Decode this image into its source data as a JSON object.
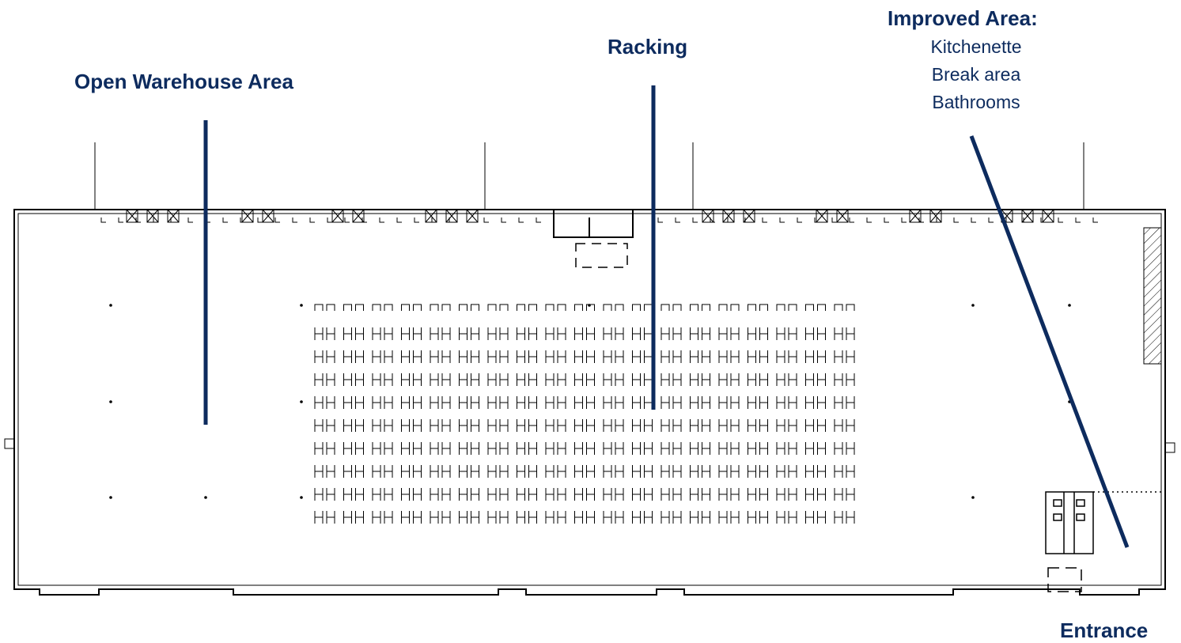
{
  "labels": {
    "open_warehouse": "Open Warehouse Area",
    "racking": "Racking",
    "improved_area_title": "Improved Area:",
    "improved_area_items": [
      "Kitchenette",
      "Break area",
      "Bathrooms"
    ],
    "entrance": "Entrance"
  },
  "colors": {
    "accent": "#0d2b5e",
    "wall": "#000000",
    "background": "#ffffff"
  },
  "racking": {
    "rows": 10,
    "column_pairs": 19
  }
}
